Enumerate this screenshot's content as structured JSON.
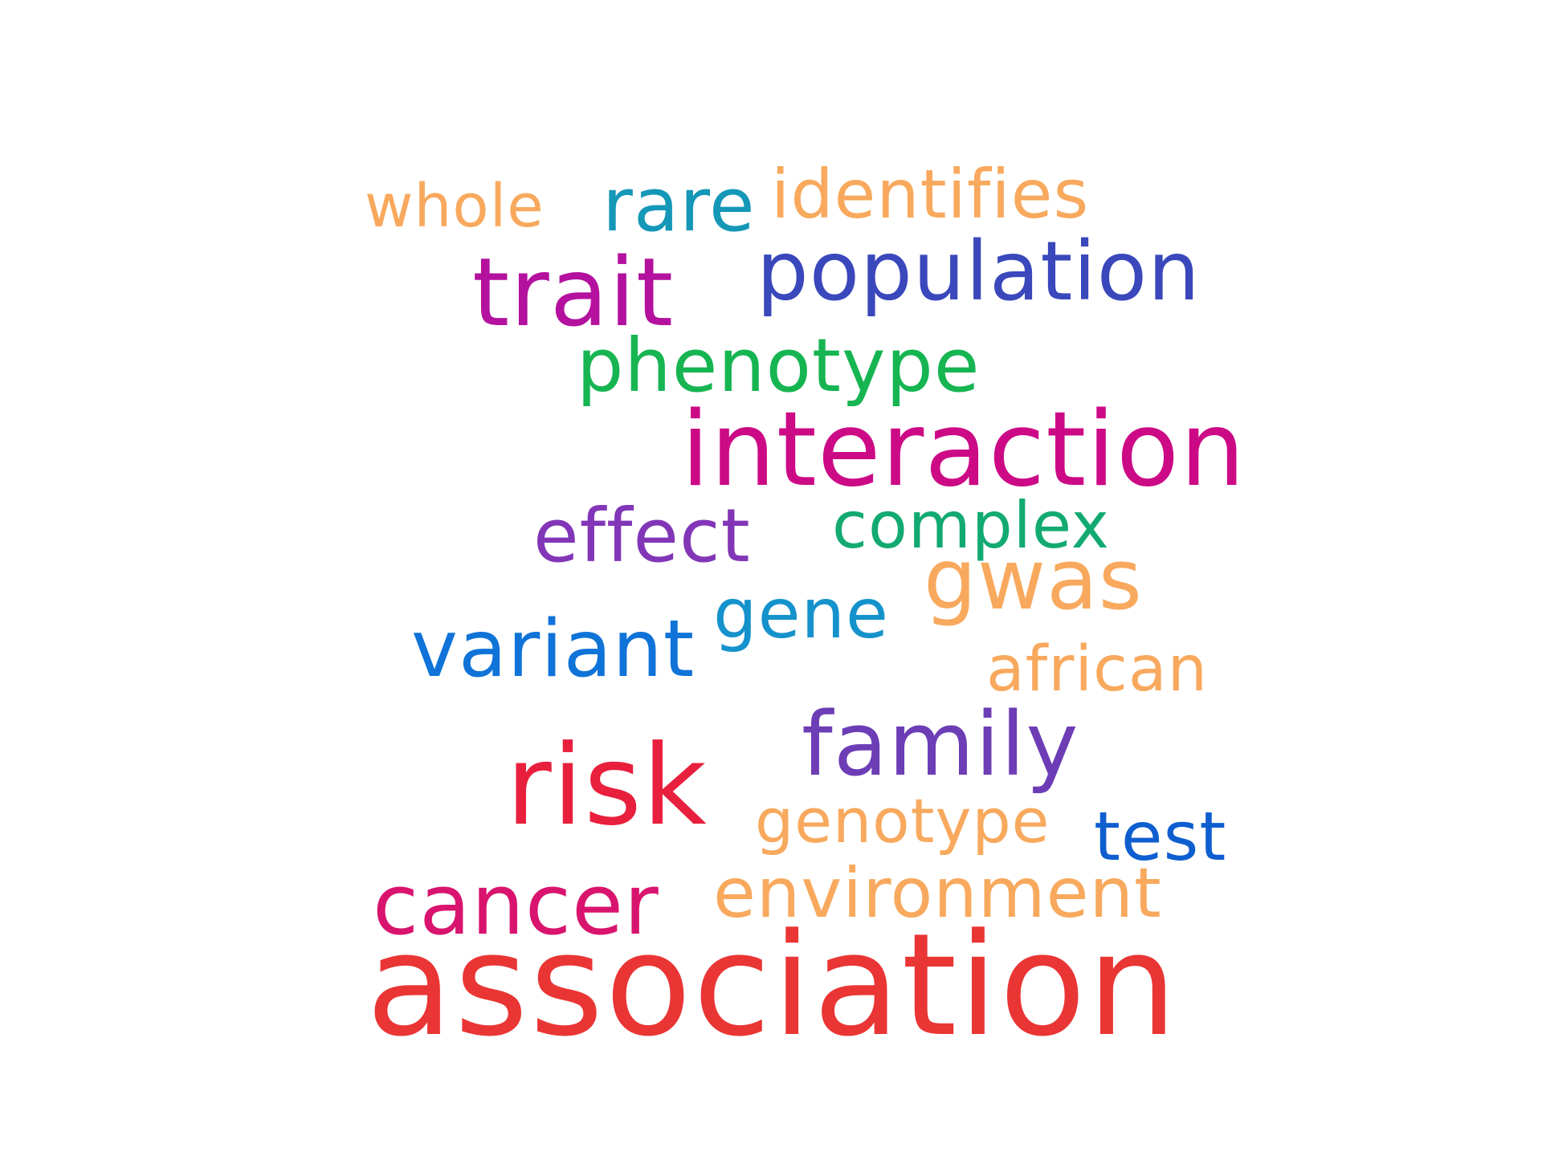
{
  "words": [
    {
      "key": "whole",
      "text": "whole",
      "color": "#F8A95D"
    },
    {
      "key": "rare",
      "text": "rare",
      "color": "#1597B7"
    },
    {
      "key": "identifies",
      "text": "identifies",
      "color": "#F8A95D"
    },
    {
      "key": "population",
      "text": "population",
      "color": "#3A48BC"
    },
    {
      "key": "trait",
      "text": "trait",
      "color": "#B3119E"
    },
    {
      "key": "phenotype",
      "text": "phenotype",
      "color": "#16B552"
    },
    {
      "key": "interaction",
      "text": "interaction",
      "color": "#CC0A86"
    },
    {
      "key": "effect",
      "text": "effect",
      "color": "#8236B7"
    },
    {
      "key": "complex",
      "text": "complex",
      "color": "#13AA72"
    },
    {
      "key": "gwas",
      "text": "gwas",
      "color": "#F8A95D"
    },
    {
      "key": "gene",
      "text": "gene",
      "color": "#1592CC"
    },
    {
      "key": "variant",
      "text": "variant",
      "color": "#1073D8"
    },
    {
      "key": "african",
      "text": "african",
      "color": "#F8A95D"
    },
    {
      "key": "family",
      "text": "family",
      "color": "#6D3DB6"
    },
    {
      "key": "risk",
      "text": "risk",
      "color": "#E8203D"
    },
    {
      "key": "genotype",
      "text": "genotype",
      "color": "#F8A95D"
    },
    {
      "key": "test",
      "text": "test",
      "color": "#0E5ED0"
    },
    {
      "key": "cancer",
      "text": "cancer",
      "color": "#D8146E"
    },
    {
      "key": "environment",
      "text": "environment",
      "color": "#F8A95D"
    },
    {
      "key": "association",
      "text": "association",
      "color": "#EA3535"
    }
  ]
}
